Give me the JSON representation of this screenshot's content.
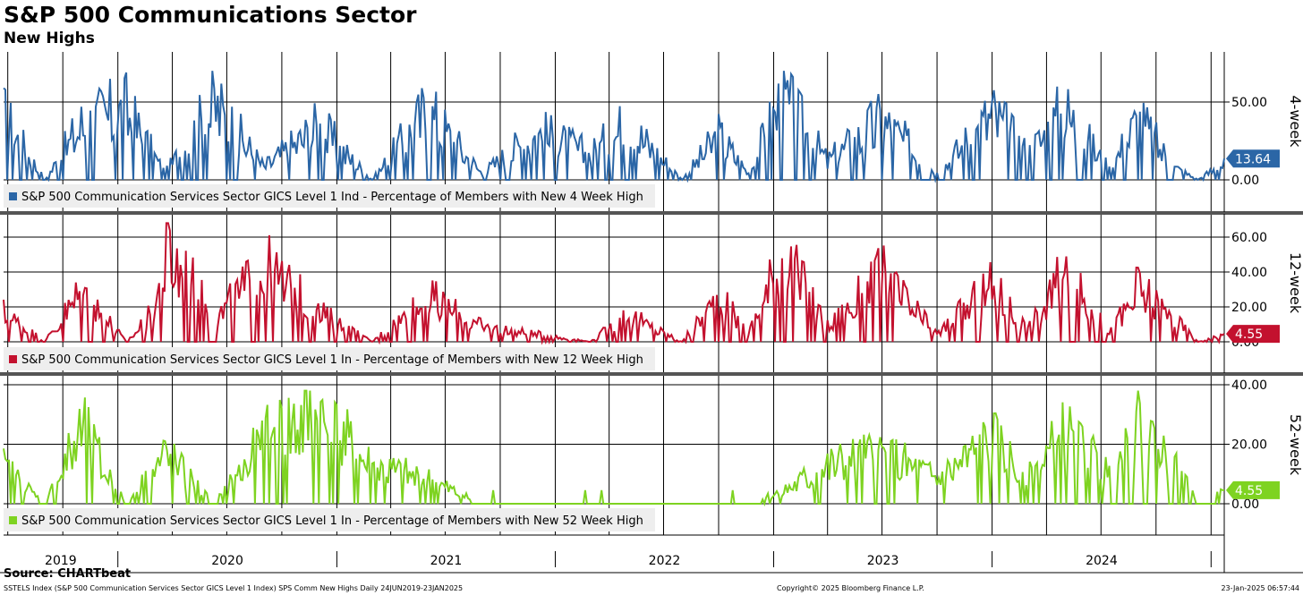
{
  "title": "S&P 500 Communications Sector",
  "subtitle": "New Highs",
  "source": "Source: CHARTbeat",
  "footer": {
    "description": "SSTELS Index (S&P 500 Communication Services Sector GICS Level 1 Index) SPS Comm New Highs  Daily 24JUN2019-23JAN2025",
    "copyright": "Copyright© 2025 Bloomberg Finance L.P.",
    "date": "23-Jan-2025 06:57:44"
  },
  "chart_data": {
    "type": "line",
    "x_start": "2019-06-24",
    "x_end": "2025-01-23",
    "x_tick_labels": [
      "2019",
      "2020",
      "2021",
      "2022",
      "2023",
      "2024"
    ],
    "grid": true,
    "panels": [
      {
        "side_label": "4-week",
        "legend": "S&P 500 Communication Services Sector GICS Level 1 Ind - Percentage of Members with New 4 Week High",
        "color": "#2b66a6",
        "ylim": [
          0,
          72
        ],
        "y_ticks": [
          "50.00",
          "0.00"
        ],
        "y_tick_values": [
          50,
          0
        ],
        "last_value": "13.64",
        "series": {
          "dates": [
            "2019-06-24",
            "2019-09-01",
            "2019-11-01",
            "2020-01-15",
            "2020-03-20",
            "2020-06-10",
            "2020-09-01",
            "2020-12-01",
            "2021-03-01",
            "2021-06-01",
            "2021-09-01",
            "2021-12-01",
            "2022-03-01",
            "2022-05-01",
            "2022-08-01",
            "2022-10-01",
            "2022-11-20",
            "2023-01-15",
            "2023-04-01",
            "2023-07-01",
            "2023-10-01",
            "2024-01-01",
            "2024-03-01",
            "2024-05-01",
            "2024-07-15",
            "2024-09-01",
            "2024-11-01",
            "2024-12-10",
            "2025-01-23"
          ],
          "values": [
            50,
            0,
            44,
            55,
            5,
            60,
            10,
            42,
            0,
            55,
            5,
            38,
            20,
            45,
            0,
            35,
            5,
            64,
            15,
            47,
            5,
            52,
            20,
            55,
            8,
            48,
            10,
            0,
            13.64
          ]
        }
      },
      {
        "side_label": "12-week",
        "legend": "S&P 500 Communication Services Sector GICS Level 1 In - Percentage of Members with New 12 Week High",
        "color": "#c3112e",
        "ylim": [
          0,
          70
        ],
        "y_ticks": [
          "60.00",
          "40.00",
          "20.00",
          "0.00"
        ],
        "y_tick_values": [
          60,
          40,
          20,
          0
        ],
        "last_value": "4.55",
        "series": {
          "dates": [
            "2019-06-24",
            "2019-09-01",
            "2019-11-01",
            "2020-01-15",
            "2020-03-01",
            "2020-03-25",
            "2020-06-10",
            "2020-09-01",
            "2020-12-01",
            "2021-03-01",
            "2021-06-01",
            "2021-09-01",
            "2021-12-01",
            "2022-03-01",
            "2022-05-01",
            "2022-08-01",
            "2022-10-01",
            "2022-11-20",
            "2023-01-15",
            "2023-04-01",
            "2023-07-01",
            "2023-10-01",
            "2024-01-01",
            "2024-03-01",
            "2024-05-01",
            "2024-07-15",
            "2024-09-01",
            "2024-11-01",
            "2024-12-10",
            "2025-01-23"
          ],
          "values": [
            20,
            0,
            35,
            0,
            20,
            65,
            15,
            50,
            20,
            0,
            30,
            10,
            5,
            0,
            18,
            0,
            30,
            5,
            60,
            10,
            44,
            5,
            38,
            8,
            45,
            5,
            36,
            15,
            0,
            4.55
          ]
        }
      },
      {
        "side_label": "52-week",
        "legend": "S&P 500 Communication Services Sector GICS Level 1 In - Percentage of Members with New 52 Week High",
        "color": "#7ed321",
        "ylim": [
          -10,
          40
        ],
        "y_ticks": [
          "40.00",
          "20.00",
          "0.00"
        ],
        "y_tick_values": [
          40,
          20,
          0
        ],
        "last_value": "4.55",
        "series": {
          "dates": [
            "2019-06-24",
            "2019-09-01",
            "2019-11-01",
            "2020-01-15",
            "2020-03-20",
            "2020-06-10",
            "2020-09-01",
            "2020-11-20",
            "2021-03-01",
            "2021-06-01",
            "2021-09-01",
            "2021-12-01",
            "2022-03-01",
            "2022-05-01",
            "2022-08-01",
            "2022-10-01",
            "2022-11-20",
            "2023-01-15",
            "2023-04-01",
            "2023-07-01",
            "2023-10-01",
            "2024-01-01",
            "2024-03-01",
            "2024-05-01",
            "2024-07-15",
            "2024-09-01",
            "2024-11-01",
            "2024-12-10",
            "2025-01-23"
          ],
          "values": [
            15,
            0,
            30,
            0,
            20,
            0,
            25,
            38,
            15,
            10,
            0,
            0,
            0,
            0,
            0,
            0,
            0,
            5,
            15,
            20,
            10,
            25,
            10,
            28,
            12,
            32,
            15,
            0,
            4.55
          ]
        }
      }
    ]
  }
}
